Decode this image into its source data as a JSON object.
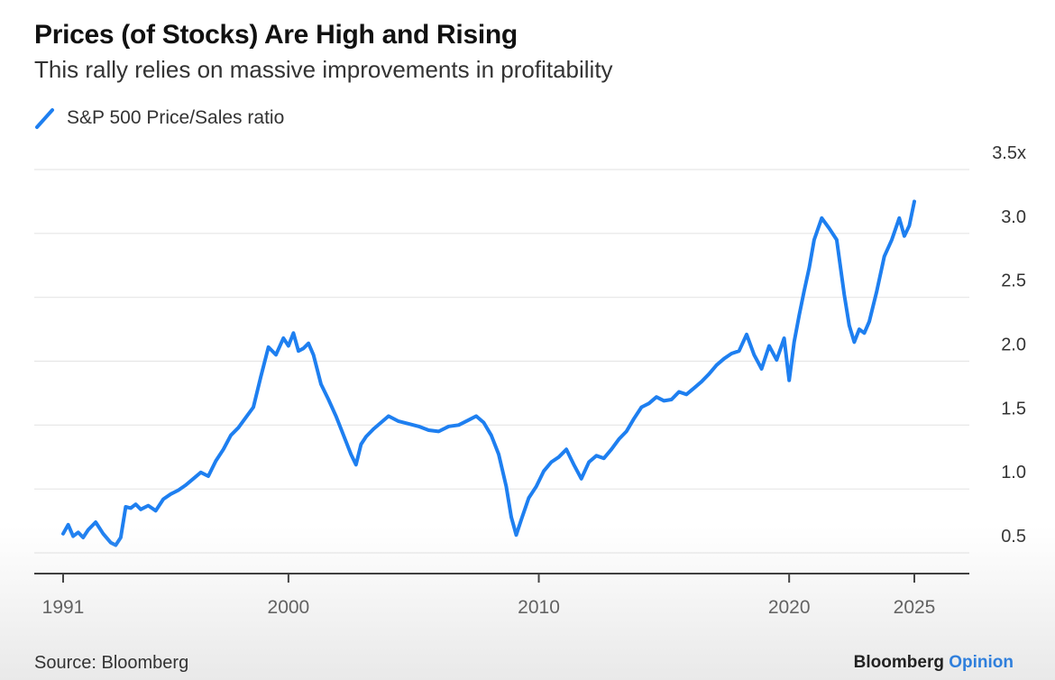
{
  "header": {
    "title": "Prices (of Stocks) Are High and Rising",
    "subtitle": "This rally relies on massive improvements in profitability"
  },
  "footer": {
    "source": "Source: Bloomberg",
    "brand_main": "Bloomberg",
    "brand_accent": "Opinion"
  },
  "colors": {
    "series": "#1e7ff0",
    "grid": "#e6e6e6",
    "axis": "#222222",
    "brand_accent": "#2f7fdc"
  },
  "chart_data": {
    "type": "line",
    "title": "Prices (of Stocks) Are High and Rising",
    "subtitle": "This rally relies on massive improvements in profitability",
    "xlabel": "",
    "ylabel": "",
    "legend_position": "top-left",
    "grid": true,
    "xlim": [
      1991,
      2026.5
    ],
    "ylim": [
      0.5,
      3.5
    ],
    "x_ticks": [
      {
        "value": 1991,
        "label": "1991"
      },
      {
        "value": 2000,
        "label": "2000"
      },
      {
        "value": 2010,
        "label": "2010"
      },
      {
        "value": 2020,
        "label": "2020"
      },
      {
        "value": 2025,
        "label": "2025"
      }
    ],
    "y_ticks": [
      {
        "value": 0.5,
        "label": "0.5"
      },
      {
        "value": 1.0,
        "label": "1.0"
      },
      {
        "value": 1.5,
        "label": "1.5"
      },
      {
        "value": 2.0,
        "label": "2.0"
      },
      {
        "value": 2.5,
        "label": "2.5"
      },
      {
        "value": 3.0,
        "label": "3.0"
      },
      {
        "value": 3.5,
        "label": "3.5x"
      }
    ],
    "series": [
      {
        "name": "S&P 500 Price/Sales ratio",
        "color": "#1e7ff0",
        "x": [
          1991.0,
          1991.2,
          1991.4,
          1991.6,
          1991.8,
          1992.0,
          1992.3,
          1992.6,
          1992.9,
          1993.1,
          1993.3,
          1993.5,
          1993.7,
          1993.9,
          1994.1,
          1994.4,
          1994.7,
          1995.0,
          1995.3,
          1995.6,
          1995.9,
          1996.2,
          1996.5,
          1996.8,
          1997.1,
          1997.4,
          1997.7,
          1998.0,
          1998.3,
          1998.6,
          1998.9,
          1999.2,
          1999.5,
          1999.8,
          2000.0,
          2000.2,
          2000.4,
          2000.6,
          2000.8,
          2001.0,
          2001.3,
          2001.6,
          2001.9,
          2002.2,
          2002.5,
          2002.7,
          2002.9,
          2003.1,
          2003.4,
          2003.7,
          2004.0,
          2004.4,
          2004.8,
          2005.2,
          2005.6,
          2006.0,
          2006.4,
          2006.8,
          2007.2,
          2007.5,
          2007.8,
          2008.1,
          2008.4,
          2008.7,
          2008.9,
          2009.1,
          2009.3,
          2009.6,
          2009.9,
          2010.2,
          2010.5,
          2010.8,
          2011.1,
          2011.4,
          2011.7,
          2012.0,
          2012.3,
          2012.6,
          2012.9,
          2013.2,
          2013.5,
          2013.8,
          2014.1,
          2014.4,
          2014.7,
          2015.0,
          2015.3,
          2015.6,
          2015.9,
          2016.2,
          2016.5,
          2016.8,
          2017.1,
          2017.4,
          2017.7,
          2018.0,
          2018.3,
          2018.6,
          2018.9,
          2019.2,
          2019.5,
          2019.8,
          2020.0,
          2020.2,
          2020.4,
          2020.6,
          2020.8,
          2021.0,
          2021.3,
          2021.6,
          2021.9,
          2022.2,
          2022.4,
          2022.6,
          2022.8,
          2023.0,
          2023.2,
          2023.5,
          2023.8,
          2024.1,
          2024.4,
          2024.6,
          2024.8,
          2025.0
        ],
        "values": [
          0.65,
          0.72,
          0.63,
          0.66,
          0.62,
          0.68,
          0.74,
          0.65,
          0.58,
          0.56,
          0.62,
          0.86,
          0.85,
          0.88,
          0.84,
          0.87,
          0.83,
          0.92,
          0.96,
          0.99,
          1.03,
          1.08,
          1.13,
          1.1,
          1.22,
          1.31,
          1.42,
          1.48,
          1.56,
          1.64,
          1.88,
          2.11,
          2.05,
          2.18,
          2.12,
          2.22,
          2.08,
          2.1,
          2.14,
          2.05,
          1.82,
          1.7,
          1.57,
          1.42,
          1.27,
          1.19,
          1.35,
          1.41,
          1.47,
          1.52,
          1.57,
          1.53,
          1.51,
          1.49,
          1.46,
          1.45,
          1.49,
          1.5,
          1.54,
          1.57,
          1.52,
          1.42,
          1.27,
          1.02,
          0.78,
          0.64,
          0.76,
          0.93,
          1.02,
          1.14,
          1.21,
          1.25,
          1.31,
          1.19,
          1.08,
          1.21,
          1.26,
          1.24,
          1.31,
          1.39,
          1.45,
          1.55,
          1.64,
          1.67,
          1.72,
          1.69,
          1.7,
          1.76,
          1.74,
          1.79,
          1.84,
          1.9,
          1.97,
          2.02,
          2.06,
          2.08,
          2.21,
          2.05,
          1.94,
          2.12,
          2.01,
          2.18,
          1.85,
          2.15,
          2.36,
          2.55,
          2.73,
          2.95,
          3.12,
          3.04,
          2.95,
          2.52,
          2.28,
          2.15,
          2.25,
          2.22,
          2.31,
          2.55,
          2.82,
          2.95,
          3.12,
          2.98,
          3.06,
          3.25
        ]
      }
    ]
  }
}
